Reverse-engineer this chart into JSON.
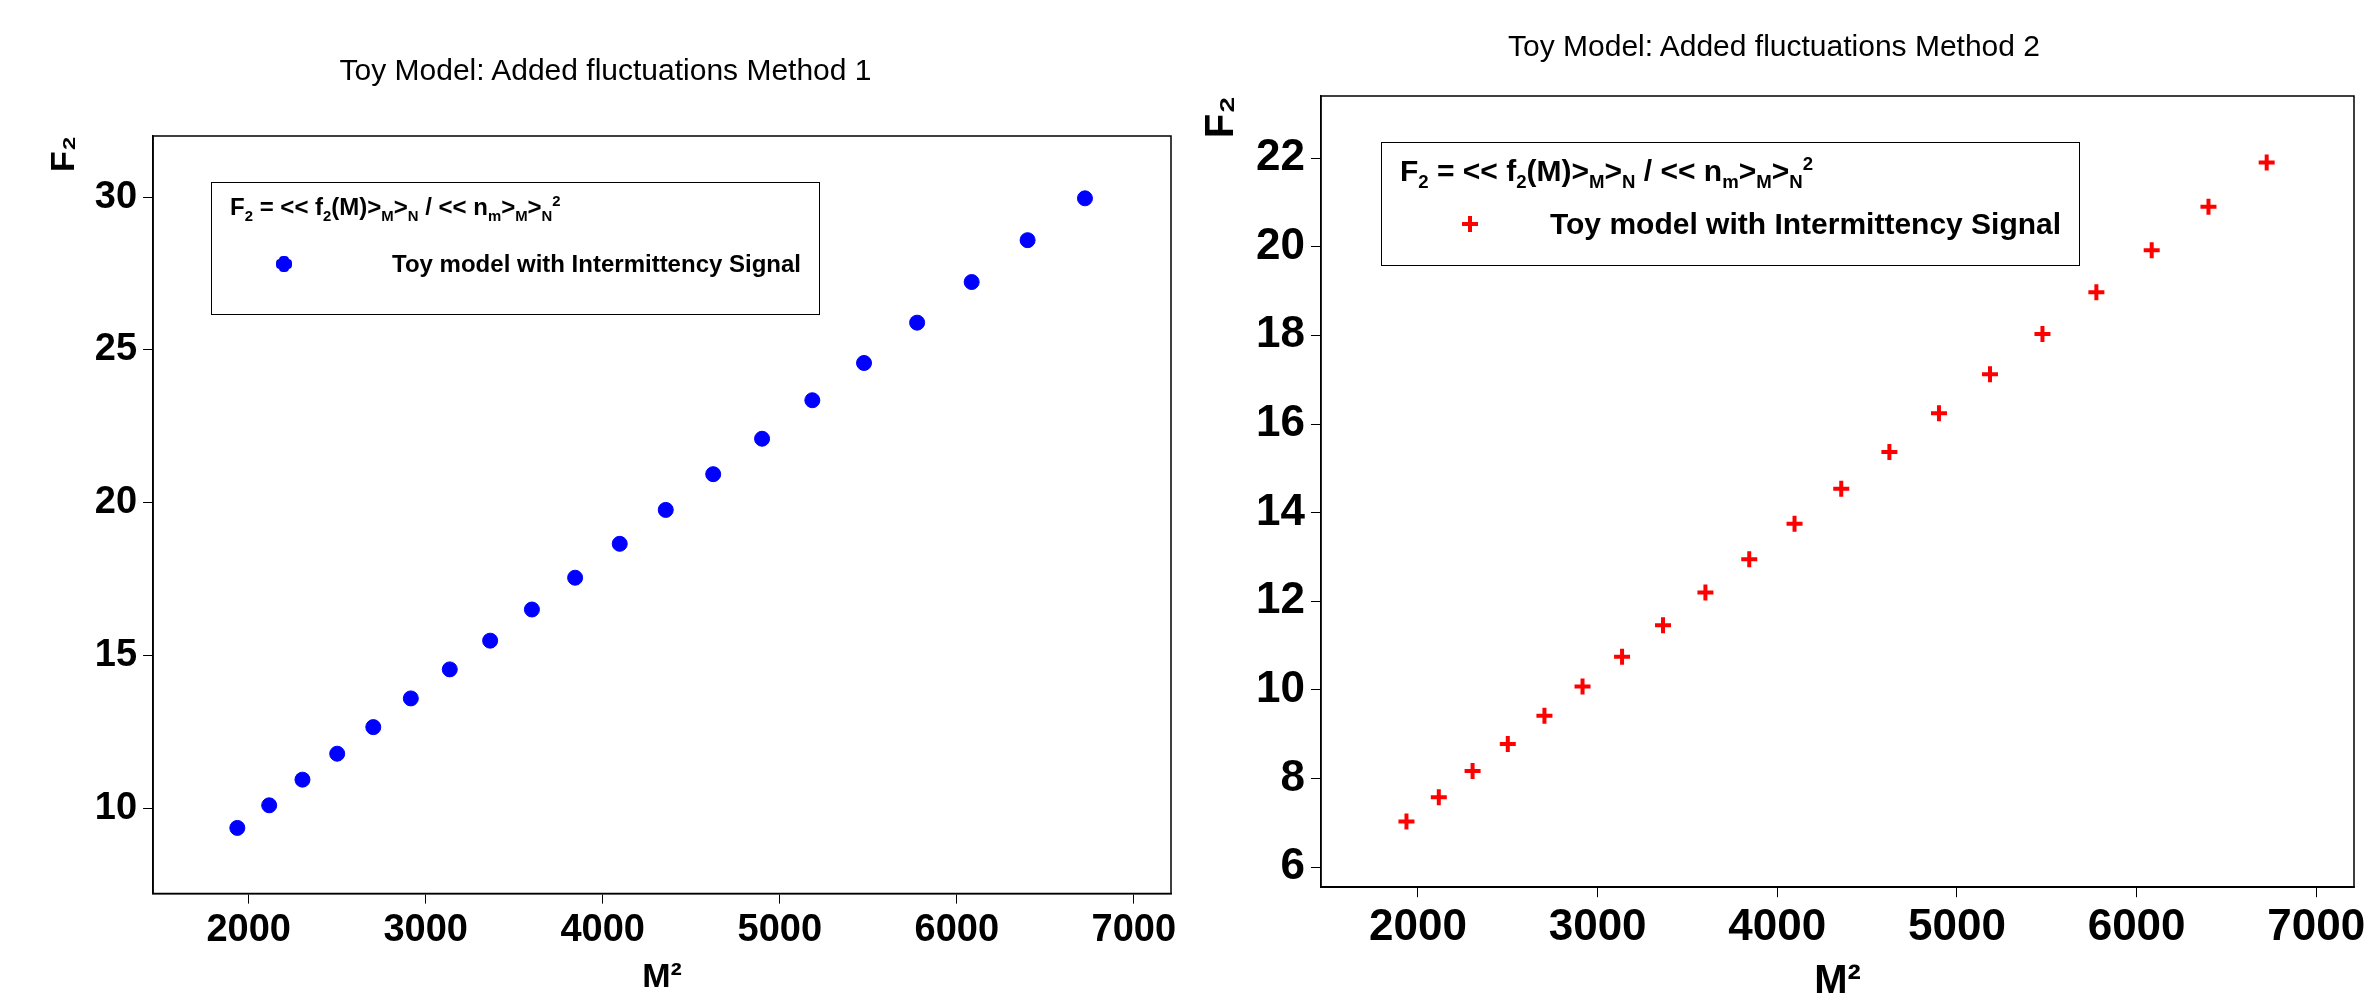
{
  "chart_data": [
    {
      "type": "scatter",
      "title": "Toy Model: Added fluctuations Method 1",
      "xlabel": "M²",
      "ylabel": "F₂",
      "legend_title": "F$_{2}$ = << f$_{2}$(M)>$_{M}$>$_{N}$ / << n$_{m}$>$_{M}$>$_{N}$$^{2}$",
      "legend": "top left",
      "marker": "circle",
      "x": [
        1936,
        2116,
        2304,
        2500,
        2704,
        2916,
        3136,
        3364,
        3600,
        3844,
        4096,
        4356,
        4624,
        4900,
        5184,
        5476,
        5776,
        6084,
        6400,
        6724
      ],
      "xlim": [
        1460,
        7210
      ],
      "xticks": [
        2000,
        3000,
        4000,
        5000,
        6000,
        7000
      ],
      "ylim": [
        7.2,
        32
      ],
      "yticks": [
        10,
        15,
        20,
        25,
        30
      ],
      "series": [
        {
          "name": "Toy model with Intermittency Signal",
          "color": "#0000ff",
          "values": [
            9.35,
            10.09,
            10.93,
            11.78,
            12.65,
            13.59,
            14.54,
            15.48,
            16.5,
            17.54,
            18.65,
            19.76,
            20.93,
            22.09,
            23.35,
            24.57,
            25.89,
            27.22,
            28.59,
            29.96
          ]
        }
      ]
    },
    {
      "type": "scatter",
      "title": "Toy Model: Added fluctuations Method 2",
      "xlabel": "M²",
      "ylabel": "F₂",
      "legend_title": "F$_{2}$ = << f$_{2}$(M)>$_{M}$>$_{N}$ / << n$_{m}$>$_{M}$>$_{N}$$^{2}$",
      "legend": "top left",
      "marker": "cross",
      "x": [
        1936,
        2116,
        2304,
        2500,
        2704,
        2916,
        3136,
        3364,
        3600,
        3844,
        4096,
        4356,
        4624,
        4900,
        5184,
        5476,
        5776,
        6084,
        6400,
        6724
      ],
      "xlim": [
        1460,
        7210
      ],
      "xticks": [
        2000,
        3000,
        4000,
        5000,
        6000,
        7000
      ],
      "ylim": [
        5.55,
        23.4
      ],
      "yticks": [
        6,
        8,
        10,
        12,
        14,
        16,
        18,
        20,
        22
      ],
      "series": [
        {
          "name": "Toy model with Intermittency Signal",
          "color": "#ff0000",
          "values": [
            7.03,
            7.58,
            8.17,
            8.78,
            9.42,
            10.08,
            10.75,
            11.46,
            12.2,
            12.95,
            13.75,
            14.54,
            15.37,
            16.24,
            17.12,
            18.03,
            18.97,
            19.92,
            20.9,
            21.9
          ]
        }
      ]
    }
  ]
}
